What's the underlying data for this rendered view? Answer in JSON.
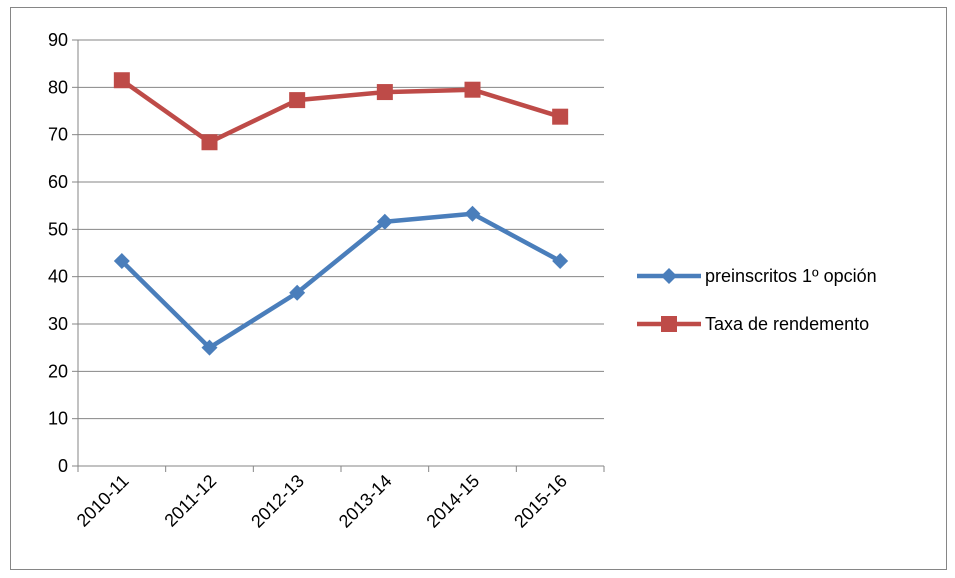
{
  "chart_data": {
    "type": "line",
    "categories": [
      "2010-11",
      "2011-12",
      "2012-13",
      "2013-14",
      "2014-15",
      "2015-16"
    ],
    "series": [
      {
        "name": "preinscritos 1º opción",
        "values": [
          43.3,
          25.0,
          36.6,
          51.6,
          53.3,
          43.3
        ],
        "color": "#4a7ebb",
        "marker": "diamond"
      },
      {
        "name": "Taxa de rendemento",
        "values": [
          81.5,
          68.4,
          77.3,
          79.0,
          79.5,
          73.8
        ],
        "color": "#be4b48",
        "marker": "square"
      }
    ],
    "title": "",
    "xlabel": "",
    "ylabel": "",
    "ylim": [
      0,
      90
    ],
    "yticks": [
      0,
      10,
      20,
      30,
      40,
      50,
      60,
      70,
      80,
      90
    ],
    "grid": true,
    "legend_position": "right"
  }
}
